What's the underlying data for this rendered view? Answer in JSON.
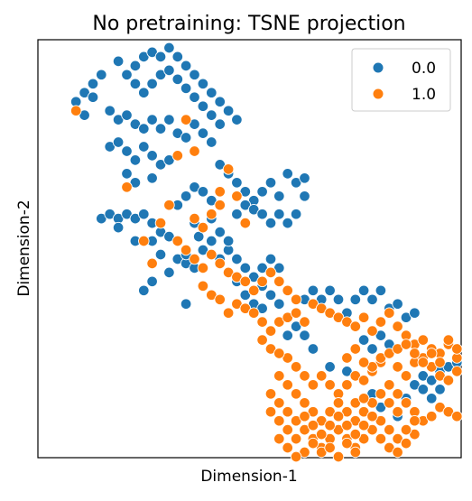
{
  "chart_data": {
    "type": "scatter",
    "title": "No pretraining: TSNE projection",
    "xlabel": "Dimension-1",
    "ylabel": "Dimension-2",
    "xlim": [
      -1.5,
      48.5
    ],
    "ylim": [
      -0.1,
      46.4
    ],
    "grid": false,
    "ticks": "none",
    "legend_position": "top-right",
    "series": [
      {
        "name": "0.0",
        "color": "#1f77b4",
        "points": [
          [
            3,
            39.5
          ],
          [
            4,
            40.5
          ],
          [
            5,
            41.5
          ],
          [
            6,
            42.5
          ],
          [
            5,
            40
          ],
          [
            8,
            44
          ],
          [
            9,
            42.5
          ],
          [
            10,
            43.5
          ],
          [
            11,
            44.5
          ],
          [
            12,
            45
          ],
          [
            13,
            44.5
          ],
          [
            14,
            45.5
          ],
          [
            15,
            44.5
          ],
          [
            16,
            43.5
          ],
          [
            17,
            42.5
          ],
          [
            18,
            41.5
          ],
          [
            19,
            40.5
          ],
          [
            20,
            39.5
          ],
          [
            21,
            38.5
          ],
          [
            22,
            37.5
          ],
          [
            10,
            41.5
          ],
          [
            11,
            40.5
          ],
          [
            12,
            41.5
          ],
          [
            13,
            42.5
          ],
          [
            14,
            43
          ],
          [
            15,
            42
          ],
          [
            16,
            41
          ],
          [
            17,
            40
          ],
          [
            18,
            39
          ],
          [
            19,
            38
          ],
          [
            20,
            37
          ],
          [
            7,
            38.5
          ],
          [
            8,
            37.5
          ],
          [
            9,
            38
          ],
          [
            10,
            37
          ],
          [
            11,
            36.5
          ],
          [
            12,
            37.5
          ],
          [
            13,
            36.5
          ],
          [
            14,
            37.5
          ],
          [
            15,
            36
          ],
          [
            16,
            35.5
          ],
          [
            17,
            37
          ],
          [
            18,
            36
          ],
          [
            19,
            35
          ],
          [
            7,
            34.5
          ],
          [
            8,
            35
          ],
          [
            9,
            34
          ],
          [
            10,
            33
          ],
          [
            11,
            34.5
          ],
          [
            12,
            33.5
          ],
          [
            13,
            32.5
          ],
          [
            14,
            33
          ],
          [
            9,
            31.5
          ],
          [
            10,
            30.5
          ],
          [
            12,
            31
          ],
          [
            6,
            26.5
          ],
          [
            7,
            27
          ],
          [
            8,
            26.5
          ],
          [
            9,
            27
          ],
          [
            10,
            26.5
          ],
          [
            11,
            27
          ],
          [
            12,
            26
          ],
          [
            13,
            25
          ],
          [
            14,
            24.5
          ],
          [
            8,
            25.5
          ],
          [
            10,
            24
          ],
          [
            12,
            24
          ],
          [
            13,
            22.5
          ],
          [
            15,
            22
          ],
          [
            16,
            21.5
          ],
          [
            17,
            21
          ],
          [
            17.5,
            24.5
          ],
          [
            19,
            24
          ],
          [
            20,
            25
          ],
          [
            21,
            23
          ],
          [
            22,
            22
          ],
          [
            23,
            21
          ],
          [
            24,
            20
          ],
          [
            25,
            19
          ],
          [
            26,
            18
          ],
          [
            27,
            17
          ],
          [
            25,
            21
          ],
          [
            26,
            22
          ],
          [
            27,
            21
          ],
          [
            20,
            32.5
          ],
          [
            21,
            31.5
          ],
          [
            22,
            30.5
          ],
          [
            23,
            29.5
          ],
          [
            24,
            28.5
          ],
          [
            25,
            29.5
          ],
          [
            26,
            30.5
          ],
          [
            27,
            29
          ],
          [
            28,
            31.5
          ],
          [
            29,
            30.5
          ],
          [
            30,
            29
          ],
          [
            30,
            31
          ],
          [
            22,
            27
          ],
          [
            23,
            28
          ],
          [
            24,
            27.5
          ],
          [
            25,
            27
          ],
          [
            26,
            26
          ],
          [
            27,
            27
          ],
          [
            28,
            26
          ],
          [
            29,
            27
          ],
          [
            15,
            28
          ],
          [
            16,
            29
          ],
          [
            17,
            30
          ],
          [
            18,
            29.5
          ],
          [
            19,
            28.5
          ],
          [
            11,
            18.5
          ],
          [
            16,
            17
          ],
          [
            22,
            19.5
          ],
          [
            23,
            18
          ],
          [
            24,
            17
          ],
          [
            25,
            16.5
          ],
          [
            28,
            13.5
          ],
          [
            30,
            17.5
          ],
          [
            31,
            18.5
          ],
          [
            32,
            17.5
          ],
          [
            33,
            18.5
          ],
          [
            34,
            17.5
          ],
          [
            35,
            16
          ],
          [
            36,
            17.5
          ],
          [
            37,
            18.5
          ],
          [
            38,
            17.5
          ],
          [
            39,
            18.5
          ],
          [
            40,
            16.5
          ],
          [
            41,
            17
          ],
          [
            42,
            15.5
          ],
          [
            43,
            16
          ],
          [
            29,
            14.5
          ],
          [
            30,
            13.5
          ],
          [
            31,
            12
          ],
          [
            37,
            13
          ],
          [
            38,
            12
          ],
          [
            39,
            13.5
          ],
          [
            40,
            12.5
          ],
          [
            33,
            10
          ],
          [
            35,
            9.5
          ],
          [
            38,
            7
          ],
          [
            39,
            5.5
          ],
          [
            41,
            4.5
          ],
          [
            42,
            6.5
          ],
          [
            43,
            8
          ],
          [
            44,
            9
          ],
          [
            45,
            8.5
          ],
          [
            46,
            9.5
          ],
          [
            47,
            10
          ],
          [
            48,
            10.5
          ],
          [
            44,
            7.5
          ],
          [
            45,
            6.5
          ],
          [
            46,
            7.5
          ],
          [
            12,
            19.5
          ],
          [
            14,
            20.5
          ],
          [
            16,
            22.5
          ],
          [
            18,
            23
          ],
          [
            20,
            22
          ],
          [
            21,
            24
          ],
          [
            17,
            26
          ],
          [
            19,
            26.5
          ],
          [
            4,
            38
          ]
        ]
      },
      {
        "name": "1.0",
        "color": "#ff7f0e",
        "points": [
          [
            3,
            38.5
          ],
          [
            9,
            30
          ],
          [
            15,
            33.5
          ],
          [
            16,
            37.5
          ],
          [
            17,
            34
          ],
          [
            20,
            29.5
          ],
          [
            21,
            32
          ],
          [
            14,
            28
          ],
          [
            17,
            26.5
          ],
          [
            18,
            25.5
          ],
          [
            19,
            27
          ],
          [
            20,
            28
          ],
          [
            22,
            29
          ],
          [
            23,
            26
          ],
          [
            11,
            24
          ],
          [
            13,
            26
          ],
          [
            15,
            24
          ],
          [
            16,
            23
          ],
          [
            17,
            22
          ],
          [
            18,
            21
          ],
          [
            19,
            22.5
          ],
          [
            20,
            21.5
          ],
          [
            21,
            20.5
          ],
          [
            22,
            20
          ],
          [
            23,
            19.5
          ],
          [
            24,
            18.5
          ],
          [
            25,
            19.5
          ],
          [
            26,
            20.5
          ],
          [
            27,
            19.5
          ],
          [
            28,
            18.5
          ],
          [
            29,
            17.5
          ],
          [
            21,
            16
          ],
          [
            22,
            17
          ],
          [
            23,
            16.5
          ],
          [
            24,
            16
          ],
          [
            25,
            15
          ],
          [
            26,
            14
          ],
          [
            27,
            15
          ],
          [
            28,
            15.5
          ],
          [
            29,
            16
          ],
          [
            30,
            15
          ],
          [
            31,
            17
          ],
          [
            32,
            16.5
          ],
          [
            33,
            16
          ],
          [
            34,
            15.5
          ],
          [
            35,
            15
          ],
          [
            36,
            14.5
          ],
          [
            37,
            15.5
          ],
          [
            38,
            14
          ],
          [
            39,
            15
          ],
          [
            40,
            16
          ],
          [
            41,
            14.5
          ],
          [
            42,
            13.5
          ],
          [
            43,
            12.5
          ],
          [
            44,
            13
          ],
          [
            45,
            12
          ],
          [
            46,
            11.5
          ],
          [
            47,
            12.5
          ],
          [
            48,
            11
          ],
          [
            41,
            10
          ],
          [
            42,
            9
          ],
          [
            43,
            10.5
          ],
          [
            44,
            11
          ],
          [
            45,
            10
          ],
          [
            46,
            9
          ],
          [
            47,
            8.5
          ],
          [
            48,
            9.5
          ],
          [
            28,
            11
          ],
          [
            29,
            10
          ],
          [
            30,
            9
          ],
          [
            31,
            8
          ],
          [
            32,
            9
          ],
          [
            33,
            8
          ],
          [
            34,
            7
          ],
          [
            35,
            8
          ],
          [
            36,
            9
          ],
          [
            37,
            8.5
          ],
          [
            38,
            9.5
          ],
          [
            39,
            10.5
          ],
          [
            40,
            8
          ],
          [
            41,
            7
          ],
          [
            42,
            6
          ],
          [
            43,
            5
          ],
          [
            44,
            4
          ],
          [
            45,
            4.5
          ],
          [
            46,
            5.5
          ],
          [
            47,
            5
          ],
          [
            48,
            4.5
          ],
          [
            26,
            7
          ],
          [
            27,
            6
          ],
          [
            28,
            5
          ],
          [
            29,
            4
          ],
          [
            30,
            3
          ],
          [
            31,
            2
          ],
          [
            32,
            1
          ],
          [
            33,
            2
          ],
          [
            34,
            3
          ],
          [
            35,
            2
          ],
          [
            36,
            1
          ],
          [
            37,
            2
          ],
          [
            38,
            3
          ],
          [
            39,
            4
          ],
          [
            40,
            3
          ],
          [
            41,
            2
          ],
          [
            42,
            1.5
          ],
          [
            43,
            2.5
          ],
          [
            27,
            9
          ],
          [
            28,
            8
          ],
          [
            29,
            7
          ],
          [
            30,
            6
          ],
          [
            31,
            5
          ],
          [
            32,
            4
          ],
          [
            33,
            5
          ],
          [
            34,
            6
          ],
          [
            35,
            5
          ],
          [
            36,
            4
          ],
          [
            37,
            5
          ],
          [
            38,
            6
          ],
          [
            39,
            7
          ],
          [
            40,
            6
          ],
          [
            41,
            5
          ],
          [
            30,
            0.5
          ],
          [
            31,
            1.5
          ],
          [
            32,
            0.5
          ],
          [
            33,
            1
          ],
          [
            34,
            0
          ],
          [
            35,
            1.5
          ],
          [
            36,
            0.5
          ],
          [
            29,
            2
          ],
          [
            30,
            4.5
          ],
          [
            31,
            3.5
          ],
          [
            32,
            2.5
          ],
          [
            33,
            3.5
          ],
          [
            34,
            4.5
          ],
          [
            35,
            3.5
          ],
          [
            36,
            2.5
          ],
          [
            37,
            3.5
          ],
          [
            38,
            4.5
          ],
          [
            39,
            2
          ],
          [
            40,
            1
          ],
          [
            41,
            0.5
          ],
          [
            42,
            3
          ],
          [
            43,
            4
          ],
          [
            28,
            3
          ],
          [
            27,
            4
          ],
          [
            26,
            5
          ],
          [
            27,
            2
          ],
          [
            28,
            1
          ],
          [
            29,
            0
          ],
          [
            36,
            6
          ],
          [
            37,
            6.5
          ],
          [
            38,
            10
          ],
          [
            39,
            11
          ],
          [
            40,
            11.5
          ],
          [
            41,
            12
          ],
          [
            42,
            12.5
          ],
          [
            43,
            11.5
          ],
          [
            44,
            10.5
          ],
          [
            45,
            11.5
          ],
          [
            46,
            10.5
          ],
          [
            47,
            13
          ],
          [
            48,
            12
          ],
          [
            35,
            11
          ],
          [
            36,
            12
          ],
          [
            37,
            10.5
          ],
          [
            12,
            21.5
          ],
          [
            18,
            19
          ],
          [
            19,
            18
          ],
          [
            20,
            17.5
          ],
          [
            25,
            13
          ],
          [
            26,
            12
          ],
          [
            27,
            11.5
          ]
        ]
      }
    ]
  }
}
